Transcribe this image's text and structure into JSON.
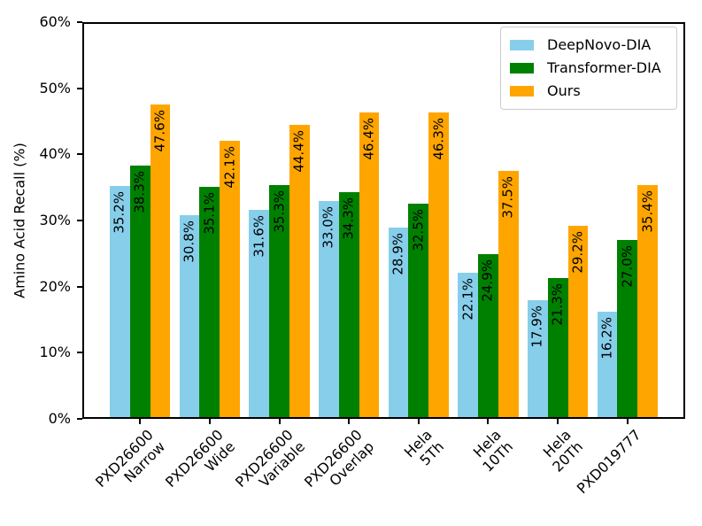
{
  "chart_data": {
    "type": "bar",
    "title": "",
    "xlabel": "",
    "ylabel": "Amino Acid Recall (%)",
    "ylim": [
      0,
      60
    ],
    "ytick_values": [
      0,
      10,
      20,
      30,
      40,
      50,
      60
    ],
    "ytick_labels": [
      "0%",
      "10%",
      "20%",
      "30%",
      "40%",
      "50%",
      "60%"
    ],
    "grid": false,
    "legend_position": "upper right",
    "categories": [
      [
        "PXD26600",
        "Narrow"
      ],
      [
        "PXD26600",
        "Wide"
      ],
      [
        "PXD26600",
        "Variable"
      ],
      [
        "PXD26600",
        "Overlap"
      ],
      [
        "Hela",
        "5Th"
      ],
      [
        "Hela",
        "10Th"
      ],
      [
        "Hela",
        "20Th"
      ],
      [
        "PXD019777"
      ]
    ],
    "series": [
      {
        "name": "DeepNovo-DIA",
        "color": "#87CEEB",
        "values": [
          35.2,
          30.8,
          31.6,
          33.0,
          28.9,
          22.1,
          17.9,
          16.2
        ],
        "labels": [
          "35.2%",
          "30.8%",
          "31.6%",
          "33.0%",
          "28.9%",
          "22.1%",
          "17.9%",
          "16.2%"
        ]
      },
      {
        "name": "Transformer-DIA",
        "color": "#008000",
        "values": [
          38.3,
          35.1,
          35.3,
          34.3,
          32.5,
          24.9,
          21.3,
          27.0
        ],
        "labels": [
          "38.3%",
          "35.1%",
          "35.3%",
          "34.3%",
          "32.5%",
          "24.9%",
          "21.3%",
          "27.0%"
        ]
      },
      {
        "name": "Ours",
        "color": "#FFA500",
        "values": [
          47.6,
          42.1,
          44.4,
          46.4,
          46.3,
          37.5,
          29.2,
          35.4
        ],
        "labels": [
          "47.6%",
          "42.1%",
          "44.4%",
          "46.4%",
          "46.3%",
          "37.5%",
          "29.2%",
          "35.4%"
        ]
      }
    ],
    "axis_color": "#000000",
    "text_color": "#000000",
    "background_color": "#ffffff"
  }
}
